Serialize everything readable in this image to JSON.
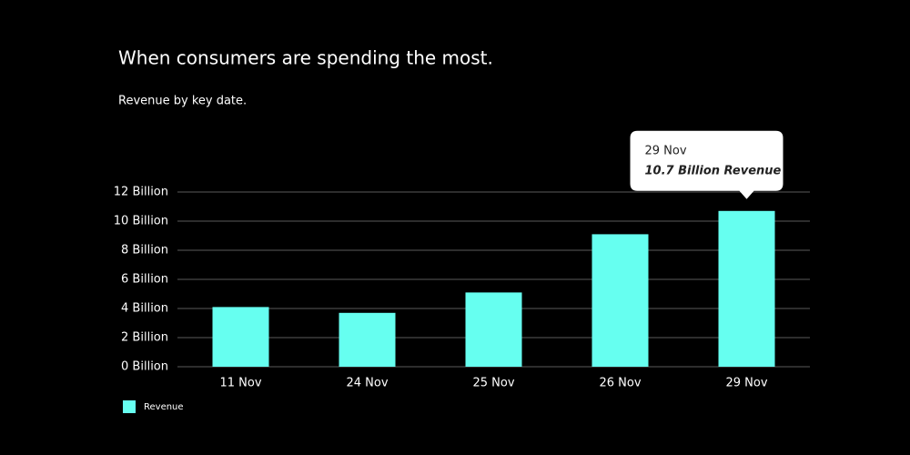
{
  "chart_data": {
    "type": "bar",
    "title": "When consumers are spending the most.",
    "subtitle": "Revenue by key date.",
    "categories": [
      "11 Nov",
      "24 Nov",
      "25 Nov",
      "26 Nov",
      "29 Nov"
    ],
    "series": [
      {
        "name": "Revenue",
        "color": "#66fff0",
        "values": [
          4.1,
          3.7,
          5.1,
          9.1,
          10.7
        ],
        "value_labels": [
          null,
          null,
          null,
          null,
          "10.7 Billion Revenue"
        ]
      }
    ],
    "ylim": [
      0,
      12
    ],
    "yticks": [
      {
        "value": 0,
        "label": "0 Billion"
      },
      {
        "value": 2,
        "label": "2 Billion"
      },
      {
        "value": 4,
        "label": "4 Billion"
      },
      {
        "value": 6,
        "label": "6 Billion"
      },
      {
        "value": 8,
        "label": "8 Billion"
      },
      {
        "value": 10,
        "label": "10 Billion"
      },
      {
        "value": 12,
        "label": "12 Billion"
      }
    ],
    "grid": true,
    "legend": "bottom-left"
  }
}
